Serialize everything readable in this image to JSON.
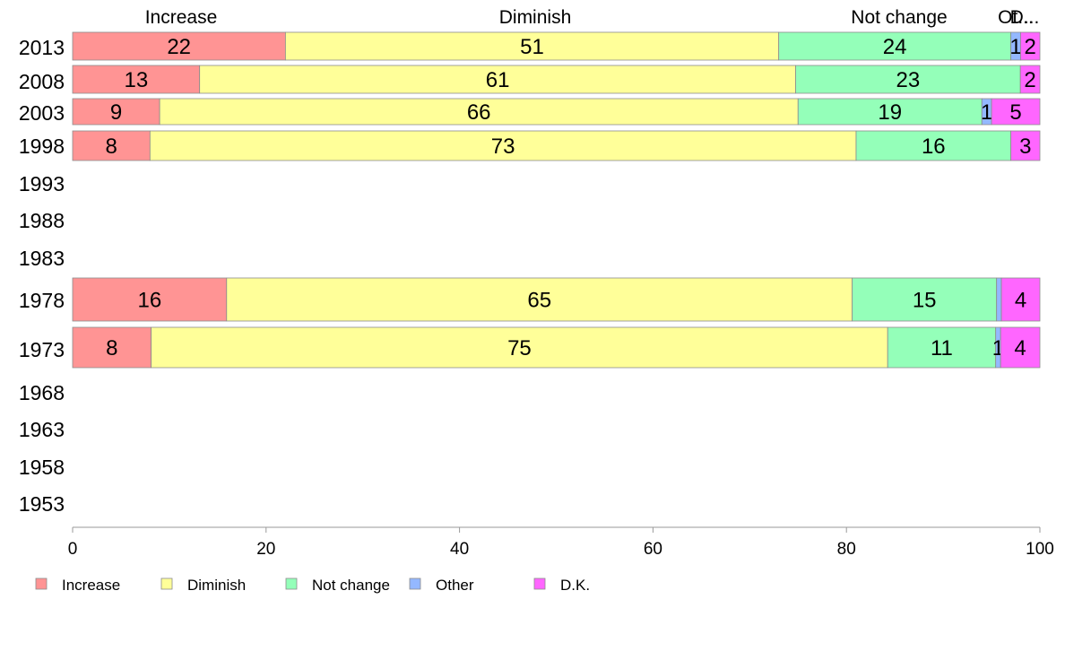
{
  "chart_data": {
    "type": "bar",
    "orientation": "horizontal",
    "stacked": true,
    "categories": [
      "2013",
      "2008",
      "2003",
      "1998",
      "1993",
      "1988",
      "1983",
      "1978",
      "1973",
      "1968",
      "1963",
      "1958",
      "1953"
    ],
    "series": [
      {
        "name": "Increase",
        "color": "#ff9494",
        "values": [
          22,
          13,
          9,
          8,
          null,
          null,
          null,
          16,
          8,
          null,
          null,
          null,
          null
        ]
      },
      {
        "name": "Diminish",
        "color": "#ffff99",
        "values": [
          51,
          61,
          66,
          73,
          null,
          null,
          null,
          65,
          75,
          null,
          null,
          null,
          null
        ]
      },
      {
        "name": "Not change",
        "color": "#94ffb9",
        "values": [
          24,
          23,
          19,
          16,
          null,
          null,
          null,
          15,
          11,
          null,
          null,
          null,
          null
        ]
      },
      {
        "name": "Other",
        "color": "#94b8ff",
        "values": [
          1,
          0,
          1,
          0,
          null,
          null,
          null,
          0.5,
          0.5,
          null,
          null,
          null,
          null
        ]
      },
      {
        "name": "D.K.",
        "color": "#ff66ff",
        "values": [
          2,
          2,
          5,
          3,
          null,
          null,
          null,
          4,
          4,
          null,
          null,
          null,
          null
        ]
      }
    ],
    "data_labels": [
      [
        "22",
        "51",
        "24",
        "1",
        "2"
      ],
      [
        "13",
        "61",
        "23",
        "",
        "2"
      ],
      [
        "9",
        "66",
        "19",
        "1",
        "5"
      ],
      [
        "8",
        "73",
        "16",
        "",
        "3"
      ],
      [],
      [],
      [],
      [
        "16",
        "65",
        "15",
        "",
        "4"
      ],
      [
        "8",
        "75",
        "11",
        "1",
        "4"
      ],
      [],
      [],
      [],
      []
    ],
    "column_headers": [
      "Increase",
      "Diminish",
      "Not change",
      "Ot...",
      "D..."
    ],
    "xlim": [
      0,
      100
    ],
    "xticks": [
      "0",
      "20",
      "40",
      "60",
      "80",
      "100"
    ],
    "legend": {
      "position": "bottom",
      "entries": [
        "Increase",
        "Diminish",
        "Not change",
        "Other",
        "D.K."
      ]
    },
    "grid": false,
    "title": "",
    "xlabel": "",
    "ylabel": ""
  }
}
